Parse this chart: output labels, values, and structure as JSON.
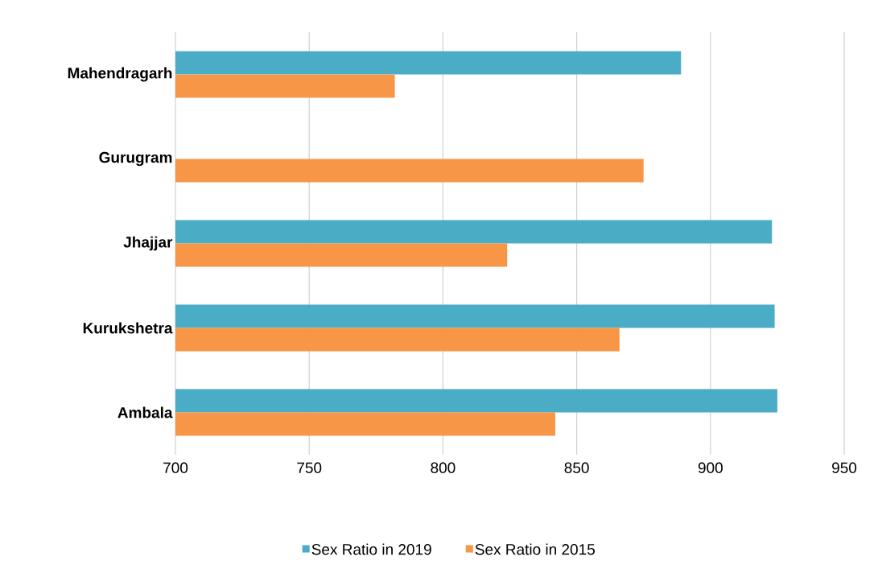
{
  "chart_data": {
    "type": "bar",
    "orientation": "horizontal",
    "categories": [
      "Mahendragarh",
      "Gurugram",
      "Jhajjar",
      "Kurukshetra",
      "Ambala"
    ],
    "series": [
      {
        "name": "Sex Ratio in 2019",
        "color": "#4bacc6",
        "values": [
          889,
          null,
          923,
          924,
          925
        ]
      },
      {
        "name": "Sex Ratio in 2015",
        "color": "#f79646",
        "values": [
          782,
          875,
          824,
          866,
          842
        ]
      }
    ],
    "xlim": [
      700,
      950
    ],
    "xticks": [
      700,
      750,
      800,
      850,
      900,
      950
    ],
    "grid": "x",
    "legend": "bottom"
  }
}
